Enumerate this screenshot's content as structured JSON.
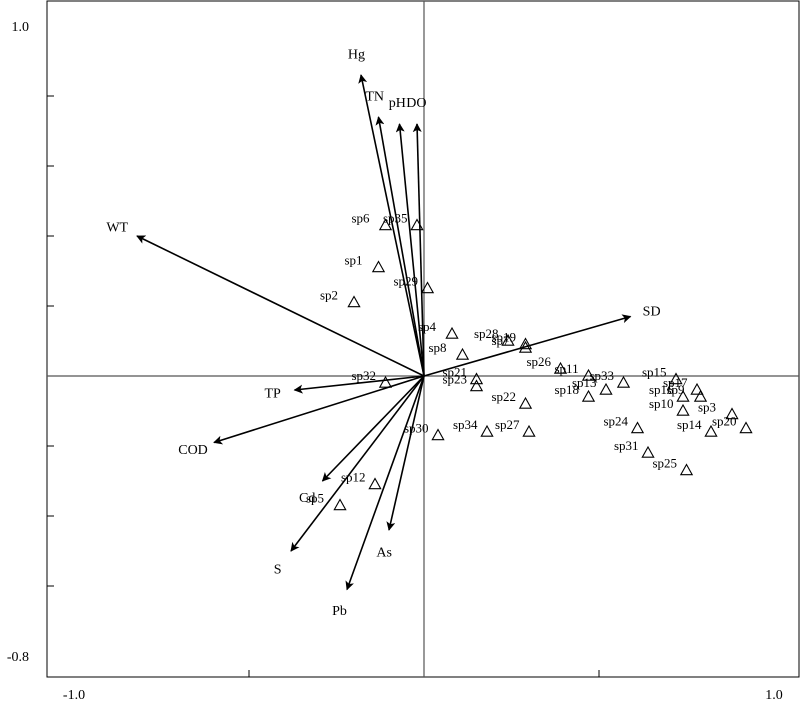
{
  "chart_data": {
    "type": "scatter",
    "subtype": "ordination-biplot",
    "title": "",
    "xlabel": "",
    "ylabel": "",
    "xlim": [
      -1.0,
      1.0
    ],
    "ylim": [
      -0.8,
      1.0
    ],
    "x_tick_labels": [
      {
        "value": -1.0,
        "label": "-1.0"
      },
      {
        "value": 1.0,
        "label": "1.0"
      }
    ],
    "y_tick_labels": [
      {
        "value": 1.0,
        "label": "1.0"
      },
      {
        "value": -0.8,
        "label": "-0.8"
      }
    ],
    "x_minor_ticks": [
      -0.5,
      0.0,
      0.5
    ],
    "y_minor_ticks": [
      0.8,
      0.6,
      0.4,
      0.2,
      -0.2,
      -0.4,
      -0.6
    ],
    "zero_lines": true,
    "environmental_vectors": [
      {
        "name": "Hg",
        "x": -0.18,
        "y": 0.86
      },
      {
        "name": "TN",
        "x": -0.13,
        "y": 0.74
      },
      {
        "name": "pH",
        "x": -0.07,
        "y": 0.72
      },
      {
        "name": "DO",
        "x": -0.02,
        "y": 0.72
      },
      {
        "name": "WT",
        "x": -0.82,
        "y": 0.4
      },
      {
        "name": "SD",
        "x": 0.59,
        "y": 0.17
      },
      {
        "name": "TP",
        "x": -0.37,
        "y": -0.04
      },
      {
        "name": "COD",
        "x": -0.6,
        "y": -0.19
      },
      {
        "name": "Cd",
        "x": -0.29,
        "y": -0.3
      },
      {
        "name": "S",
        "x": -0.38,
        "y": -0.5
      },
      {
        "name": "As",
        "x": -0.1,
        "y": -0.44
      },
      {
        "name": "Pb",
        "x": -0.22,
        "y": -0.61
      }
    ],
    "species": [
      {
        "name": "sp1",
        "x": -0.13,
        "y": 0.31
      },
      {
        "name": "sp2",
        "x": -0.2,
        "y": 0.21
      },
      {
        "name": "sp3",
        "x": 0.88,
        "y": -0.11
      },
      {
        "name": "sp4",
        "x": 0.08,
        "y": 0.12
      },
      {
        "name": "sp5",
        "x": -0.24,
        "y": -0.37
      },
      {
        "name": "sp6",
        "x": -0.11,
        "y": 0.43
      },
      {
        "name": "sp7",
        "x": 0.29,
        "y": 0.08
      },
      {
        "name": "sp8",
        "x": 0.11,
        "y": 0.06
      },
      {
        "name": "sp9",
        "x": 0.79,
        "y": -0.06
      },
      {
        "name": "sp10",
        "x": 0.74,
        "y": -0.1
      },
      {
        "name": "sp11",
        "x": 0.47,
        "y": 0.0
      },
      {
        "name": "sp12",
        "x": -0.14,
        "y": -0.31
      },
      {
        "name": "sp13",
        "x": 0.52,
        "y": -0.04
      },
      {
        "name": "sp14",
        "x": 0.82,
        "y": -0.16
      },
      {
        "name": "sp15",
        "x": 0.72,
        "y": -0.01
      },
      {
        "name": "sp16",
        "x": 0.74,
        "y": -0.06
      },
      {
        "name": "sp17",
        "x": 0.78,
        "y": -0.04
      },
      {
        "name": "sp18",
        "x": 0.47,
        "y": -0.06
      },
      {
        "name": "sp19",
        "x": 0.29,
        "y": 0.09
      },
      {
        "name": "sp20",
        "x": 0.92,
        "y": -0.15
      },
      {
        "name": "sp21",
        "x": 0.15,
        "y": -0.01
      },
      {
        "name": "sp22",
        "x": 0.29,
        "y": -0.08
      },
      {
        "name": "sp23",
        "x": 0.15,
        "y": -0.03
      },
      {
        "name": "sp24",
        "x": 0.61,
        "y": -0.15
      },
      {
        "name": "sp25",
        "x": 0.75,
        "y": -0.27
      },
      {
        "name": "sp26",
        "x": 0.39,
        "y": 0.02
      },
      {
        "name": "sp27",
        "x": 0.3,
        "y": -0.16
      },
      {
        "name": "sp28",
        "x": 0.24,
        "y": 0.1
      },
      {
        "name": "sp29",
        "x": 0.01,
        "y": 0.25
      },
      {
        "name": "sp30",
        "x": 0.04,
        "y": -0.17
      },
      {
        "name": "sp31",
        "x": 0.64,
        "y": -0.22
      },
      {
        "name": "sp32",
        "x": -0.11,
        "y": -0.02
      },
      {
        "name": "sp33",
        "x": 0.57,
        "y": -0.02
      },
      {
        "name": "sp34",
        "x": 0.18,
        "y": -0.16
      },
      {
        "name": "sp35",
        "x": -0.02,
        "y": 0.43
      }
    ]
  }
}
